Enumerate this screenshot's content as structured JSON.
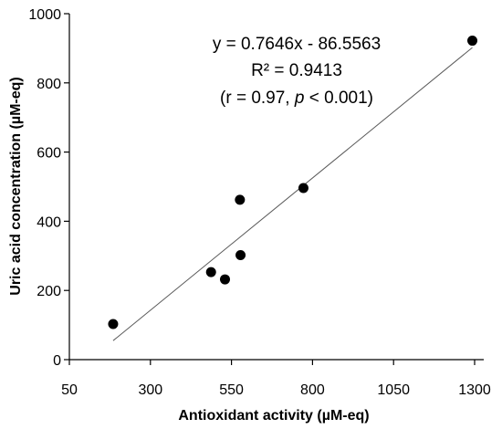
{
  "chart_data": {
    "type": "scatter",
    "title": "",
    "xlabel": "Antioxidant activity (µM-eq)",
    "ylabel": "Uric acid concentration (µM-eq)",
    "xlim": [
      50,
      1300
    ],
    "ylim": [
      0,
      1000
    ],
    "xticks": [
      "50",
      "300",
      "550",
      "800",
      "1050",
      "1300"
    ],
    "yticks": [
      "0",
      "200",
      "400",
      "600",
      "800",
      "1000"
    ],
    "grid": false,
    "legend": "none",
    "points": [
      {
        "x": 185,
        "y": 103
      },
      {
        "x": 487,
        "y": 253
      },
      {
        "x": 530,
        "y": 232
      },
      {
        "x": 576,
        "y": 462
      },
      {
        "x": 578,
        "y": 302
      },
      {
        "x": 772,
        "y": 496
      },
      {
        "x": 1293,
        "y": 922
      }
    ],
    "trendline": {
      "slope": 0.7646,
      "intercept": -86.5563,
      "x_range": [
        185,
        1293
      ]
    },
    "annotations": {
      "equation": "y = 0.7646x - 86.5563",
      "r2": "R² = 0.9413",
      "r_prefix": "(r = 0.97, ",
      "p_symbol": "p",
      "p_suffix": " < 0.001)"
    },
    "colors": {
      "marker": "#000000",
      "line": "#595959",
      "axis": "#000000"
    }
  }
}
